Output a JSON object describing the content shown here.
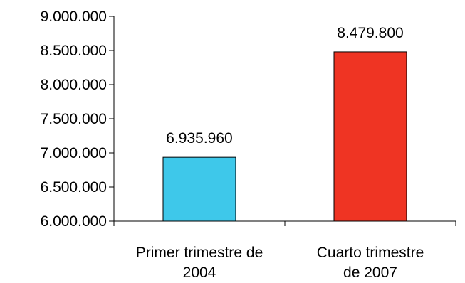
{
  "chart_data": {
    "type": "bar",
    "categories": [
      [
        "Primer trimestre de",
        "2004"
      ],
      [
        "Cuarto trimestre",
        "de 2007"
      ]
    ],
    "values": [
      6935960,
      8479800
    ],
    "data_labels": [
      "6.935.960",
      "8.479.800"
    ],
    "bar_colors": [
      "#3ec8ea",
      "#ef3423"
    ],
    "ylim": [
      6000000,
      9000000
    ],
    "y_ticks": [
      6000000,
      6500000,
      7000000,
      7500000,
      8000000,
      8500000,
      9000000
    ],
    "y_tick_labels": [
      "6.000.000",
      "6.500.000",
      "7.000.000",
      "7.500.000",
      "8.000.000",
      "8.500.000",
      "9.000.000"
    ],
    "grid": false,
    "legend": "none"
  }
}
